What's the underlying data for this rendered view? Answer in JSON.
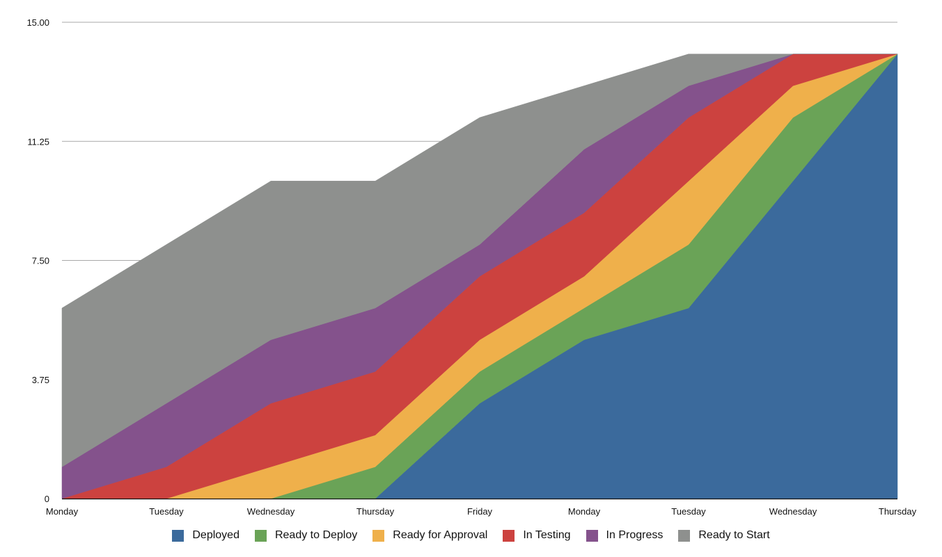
{
  "chart_data": {
    "type": "area",
    "stacked": true,
    "title": "",
    "xlabel": "",
    "ylabel": "",
    "categories": [
      "Monday",
      "Tuesday",
      "Wednesday",
      "Thursday",
      "Friday",
      "Monday",
      "Tuesday",
      "Wednesday",
      "Thursday"
    ],
    "ylim": [
      0,
      15
    ],
    "yticks": [
      "0",
      "3.75",
      "7.50",
      "11.25",
      "15.00"
    ],
    "ytick_values": [
      0,
      3.75,
      7.5,
      11.25,
      15
    ],
    "grid": "horizontal",
    "legend_position": "bottom",
    "series": [
      {
        "name": "Deployed",
        "color": "#3b6a9c",
        "values": [
          0,
          0,
          0,
          0,
          3,
          5,
          6,
          10,
          14
        ]
      },
      {
        "name": "Ready to Deploy",
        "color": "#6aa357",
        "values": [
          0,
          0,
          0,
          1,
          1,
          1,
          2,
          2,
          0
        ]
      },
      {
        "name": "Ready for Approval",
        "color": "#efb04b",
        "values": [
          0,
          0,
          1,
          1,
          1,
          1,
          2,
          1,
          0
        ]
      },
      {
        "name": "In Testing",
        "color": "#cc423f",
        "values": [
          0,
          1,
          2,
          2,
          2,
          2,
          2,
          1,
          0
        ]
      },
      {
        "name": "In Progress",
        "color": "#84528c",
        "values": [
          1,
          2,
          2,
          2,
          1,
          2,
          1,
          0,
          0
        ]
      },
      {
        "name": "Ready to Start",
        "color": "#8e908e",
        "values": [
          5,
          5,
          5,
          4,
          4,
          2,
          1,
          0,
          0
        ]
      }
    ]
  }
}
